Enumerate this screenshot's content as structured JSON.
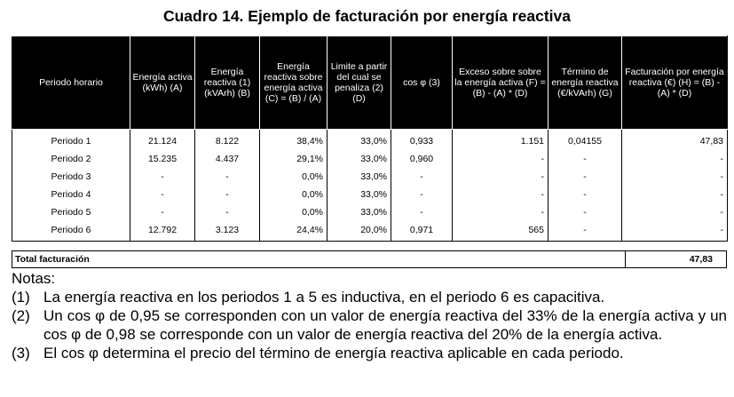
{
  "title": "Cuadro 14. Ejemplo de facturación por energía reactiva",
  "table": {
    "headers": [
      "Periodo horario",
      "Energía activa (kWh) (A)",
      "Energía reactiva (1) (kVArh) (B)",
      "Energía reactiva sobre energía activa (C) = (B) / (A)",
      "Limite a partir del cual se penaliza (2) (D)",
      "cos φ (3)",
      "Exceso sobre sobre la energía activa (F) = (B) - (A) * (D)",
      "Término de energía reactiva (€/kVArh) (G)",
      "Facturación por energía reactiva (€) (H) = (B) - (A) * (D)"
    ],
    "rows": [
      [
        "Periodo 1",
        "21.124",
        "8.122",
        "38,4%",
        "33,0%",
        "0,933",
        "1.151",
        "0,04155",
        "47,83"
      ],
      [
        "Periodo 2",
        "15.235",
        "4.437",
        "29,1%",
        "33,0%",
        "0,960",
        "-",
        "-",
        "-"
      ],
      [
        "Periodo 3",
        "-",
        "-",
        "0,0%",
        "33,0%",
        "-",
        "-",
        "-",
        "-"
      ],
      [
        "Periodo 4",
        "-",
        "-",
        "0,0%",
        "33,0%",
        "-",
        "-",
        "-",
        "-"
      ],
      [
        "Periodo 5",
        "-",
        "-",
        "0,0%",
        "33,0%",
        "-",
        "-",
        "-",
        "-"
      ],
      [
        "Periodo 6",
        "12.792",
        "3.123",
        "24,4%",
        "20,0%",
        "0,971",
        "565",
        "-",
        "-"
      ]
    ]
  },
  "total": {
    "label": "Total facturación",
    "value": "47,83"
  },
  "notes": {
    "title": "Notas:",
    "items": [
      {
        "num": "(1)",
        "text": "La energía reactiva en los periodos 1 a 5 es inductiva, en el periodo 6 es capacitiva."
      },
      {
        "num": "(2)",
        "text": "Un cos φ de 0,95 se corresponden con un valor de energía reactiva del 33% de la energía activa y un cos φ de 0,98 se corresponde con un valor de energía reactiva del 20% de la energía activa."
      },
      {
        "num": "(3)",
        "text": "El cos φ determina el precio del término de energía reactiva aplicable en cada periodo."
      }
    ]
  }
}
